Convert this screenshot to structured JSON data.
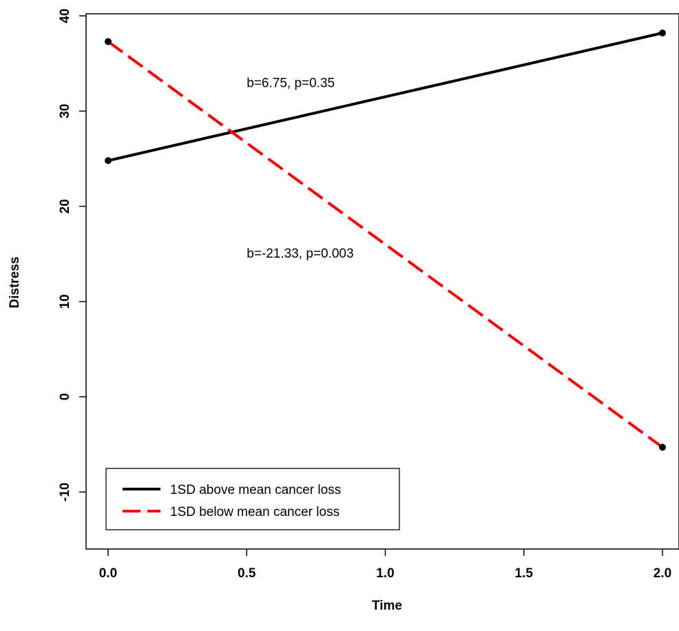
{
  "chart_data": {
    "type": "line",
    "title": "",
    "xlabel": "Time",
    "ylabel": "Distress",
    "xlim": [
      0,
      2
    ],
    "ylim": [
      -16,
      40
    ],
    "x_ticks": [
      "0.0",
      "0.5",
      "1.0",
      "1.5",
      "2.0"
    ],
    "y_ticks": [
      "-10",
      "0",
      "10",
      "20",
      "30",
      "40"
    ],
    "grid": false,
    "legend_position": "bottom-left",
    "series": [
      {
        "name": "1SD above mean cancer loss",
        "color": "#000000",
        "line_style": "solid",
        "x": [
          0,
          2
        ],
        "y": [
          24.8,
          38.2
        ]
      },
      {
        "name": "1SD below mean cancer loss",
        "color": "#ff0000",
        "line_style": "dashed",
        "x": [
          0,
          2
        ],
        "y": [
          37.3,
          -5.3
        ]
      }
    ],
    "annotations": [
      {
        "text": "b=6.75, p=0.35",
        "x": 0.5,
        "y": 32.5
      },
      {
        "text": "b=-21.33, p=0.003",
        "x": 0.5,
        "y": 14.6
      }
    ]
  }
}
